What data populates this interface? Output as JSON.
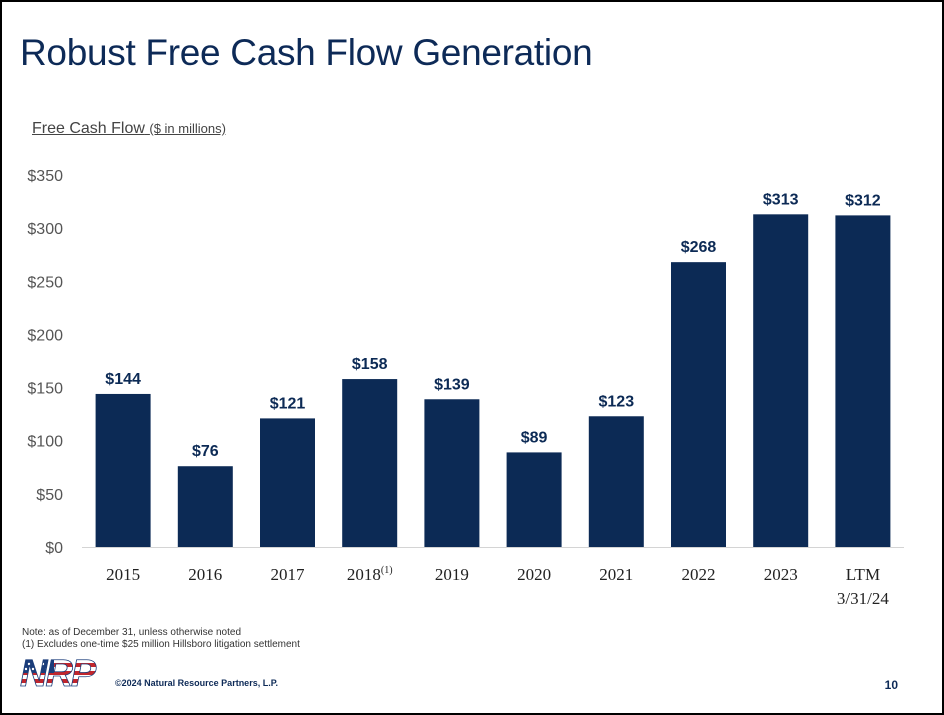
{
  "slide": {
    "title": "Robust Free Cash Flow Generation",
    "subtitle": "Free Cash Flow",
    "subtitle_unit": "($ in millions)",
    "note_line1": "Note: as of December 31, unless otherwise noted",
    "note_line2": "(1) Excludes one-time $25 million Hillsboro litigation settlement",
    "logo_text": "NRP",
    "copyright": "©2024 Natural Resource Partners, L.P.",
    "page_number": "10"
  },
  "colors": {
    "bar": "#0c2a55",
    "title": "#0d2a57",
    "flag_red": "#c0262d",
    "flag_blue": "#1b3d7a"
  },
  "chart_data": {
    "type": "bar",
    "title": "",
    "xlabel": "",
    "ylabel": "",
    "ylim": [
      0,
      350
    ],
    "yticks": [
      "$0",
      "$50",
      "$100",
      "$150",
      "$200",
      "$250",
      "$300",
      "$350"
    ],
    "yticks_values": [
      0,
      50,
      100,
      150,
      200,
      250,
      300,
      350
    ],
    "categories": [
      "2015",
      "2016",
      "2017",
      "2018",
      "2019",
      "2020",
      "2021",
      "2022",
      "2023",
      "LTM\n3/31/24"
    ],
    "category_footnotes": [
      "",
      "",
      "",
      "(1)",
      "",
      "",
      "",
      "",
      "",
      ""
    ],
    "values": [
      144,
      76,
      121,
      158,
      139,
      89,
      123,
      268,
      313,
      312
    ],
    "data_labels": [
      "$144",
      "$76",
      "$121",
      "$158",
      "$139",
      "$89",
      "$123",
      "$268",
      "$313",
      "$312"
    ],
    "grid": false,
    "legend": "none"
  }
}
